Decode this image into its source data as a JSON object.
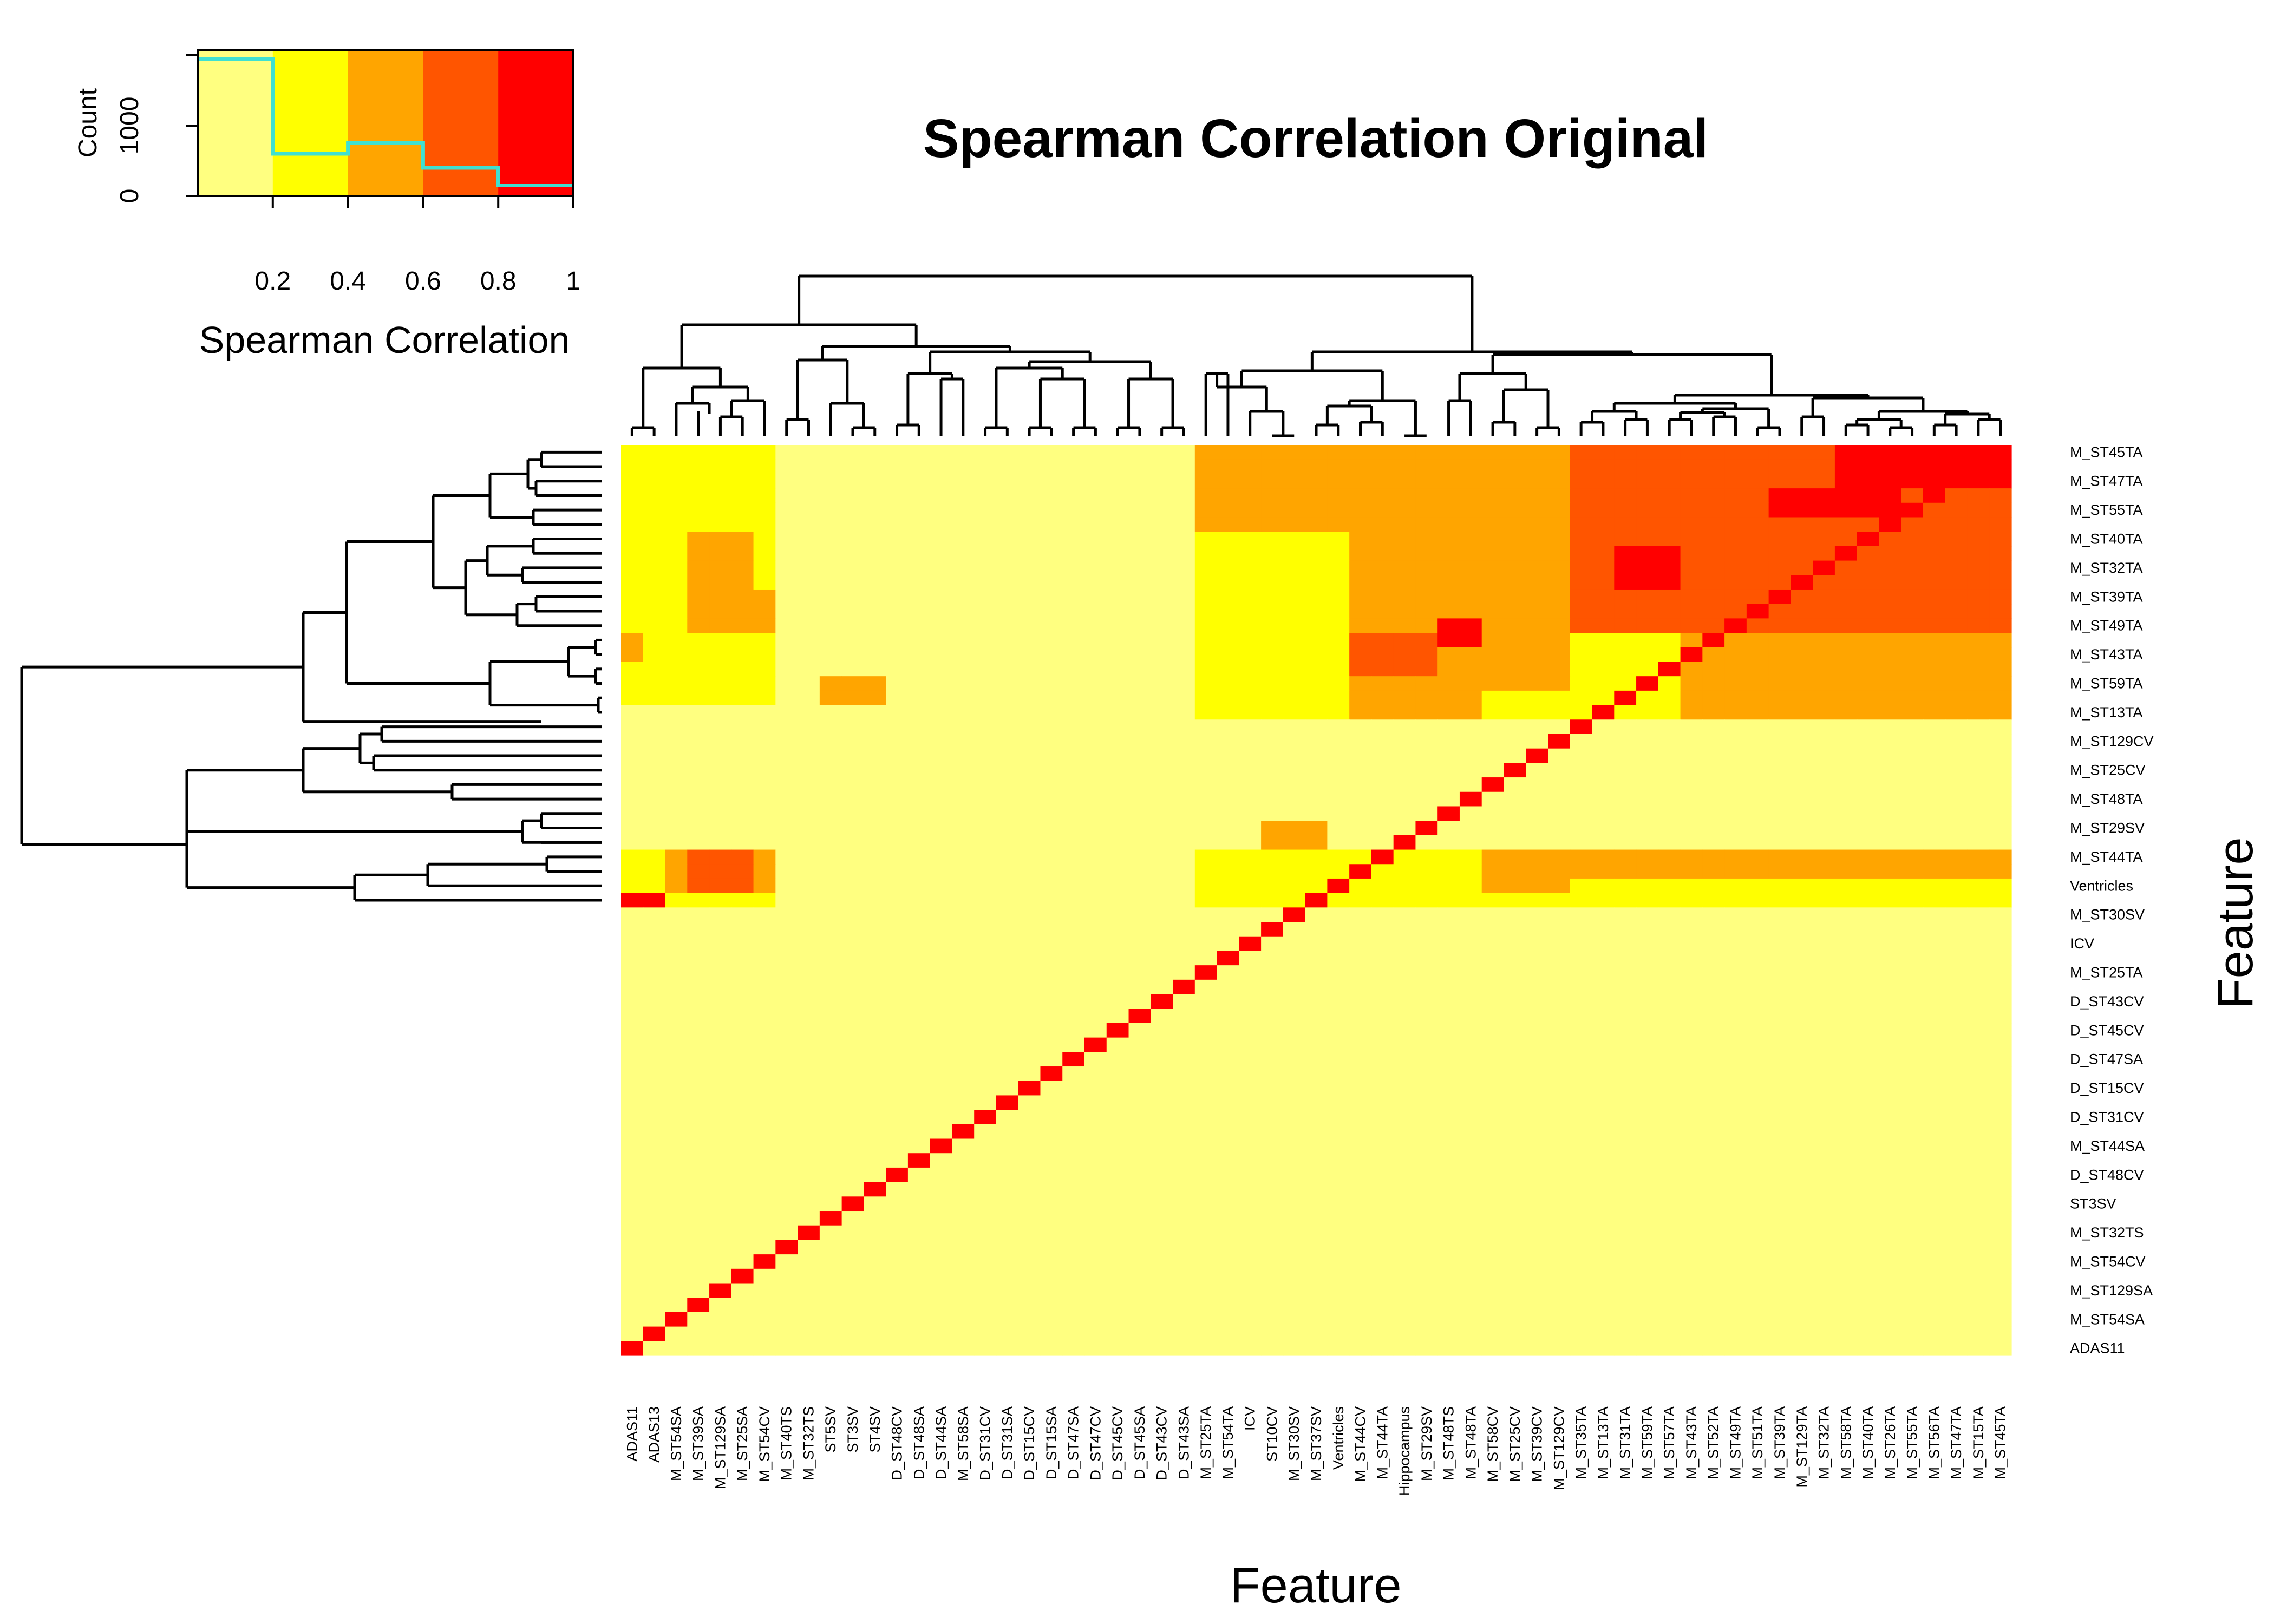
{
  "chart_data": {
    "type": "heatmap",
    "title": "Spearman Correlation Original",
    "xlabel": "Feature",
    "ylabel": "Feature",
    "column_labels": [
      "ADAS11",
      "ADAS13",
      "M_ST54SA",
      "M_ST39SA",
      "M_ST129SA",
      "M_ST25SA",
      "M_ST54CV",
      "M_ST40TS",
      "M_ST32TS",
      "ST5SV",
      "ST3SV",
      "ST4SV",
      "D_ST48CV",
      "D_ST48SA",
      "D_ST44SA",
      "M_ST58SA",
      "D_ST31CV",
      "D_ST31SA",
      "D_ST15CV",
      "D_ST15SA",
      "D_ST47SA",
      "D_ST47CV",
      "D_ST45CV",
      "D_ST45SA",
      "D_ST43CV",
      "D_ST43SA",
      "M_ST25TA",
      "M_ST54TA",
      "ICV",
      "ST10CV",
      "M_ST30SV",
      "M_ST37SV",
      "Ventricles",
      "M_ST44CV",
      "M_ST44TA",
      "Hippocampus",
      "M_ST29SV",
      "M_ST48TS",
      "M_ST48TA",
      "M_ST58CV",
      "M_ST25CV",
      "M_ST39CV",
      "M_ST129CV",
      "M_ST35TA",
      "M_ST13TA",
      "M_ST31TA",
      "M_ST59TA",
      "M_ST57TA",
      "M_ST43TA",
      "M_ST52TA",
      "M_ST49TA",
      "M_ST51TA",
      "M_ST39TA",
      "M_ST129TA",
      "M_ST32TA",
      "M_ST58TA",
      "M_ST40TA",
      "M_ST26TA",
      "M_ST55TA",
      "M_ST56TA",
      "M_ST47TA",
      "M_ST15TA",
      "M_ST45TA"
    ],
    "row_labels": [
      "M_ST45TA",
      "M_ST47TA",
      "M_ST55TA",
      "M_ST40TA",
      "M_ST32TA",
      "M_ST39TA",
      "M_ST49TA",
      "M_ST43TA",
      "M_ST59TA",
      "M_ST13TA",
      "M_ST129CV",
      "M_ST25CV",
      "M_ST48TA",
      "M_ST29SV",
      "M_ST44TA",
      "Ventricles",
      "M_ST30SV",
      "ICV",
      "M_ST25TA",
      "D_ST43CV",
      "D_ST45CV",
      "D_ST47SA",
      "D_ST15CV",
      "D_ST31CV",
      "M_ST44SA",
      "D_ST48CV",
      "ST3SV",
      "M_ST32TS",
      "M_ST54CV",
      "M_ST129SA",
      "M_ST54SA",
      "ADAS11"
    ],
    "row_count": 63,
    "color_bins": [
      {
        "range": [
          0.0,
          0.2
        ],
        "color": "#FFFF80"
      },
      {
        "range": [
          0.2,
          0.4
        ],
        "color": "#FFFF00"
      },
      {
        "range": [
          0.4,
          0.6
        ],
        "color": "#FFA500"
      },
      {
        "range": [
          0.6,
          0.8
        ],
        "color": "#FF5500"
      },
      {
        "range": [
          0.8,
          1.0
        ],
        "color": "#FF0000"
      }
    ],
    "blocks": [
      {
        "rows": [
          0,
          18
        ],
        "cols": [
          26,
          62
        ],
        "value": 0.5
      },
      {
        "rows": [
          0,
          12
        ],
        "cols": [
          43,
          62
        ],
        "value": 0.7
      },
      {
        "rows": [
          0,
          2
        ],
        "cols": [
          55,
          62
        ],
        "value": 0.9
      },
      {
        "rows": [
          3,
          4
        ],
        "cols": [
          52,
          57
        ],
        "value": 0.85
      },
      {
        "rows": [
          6,
          9
        ],
        "cols": [
          43,
          52
        ],
        "value": 0.8
      },
      {
        "rows": [
          7,
          9
        ],
        "cols": [
          45,
          47
        ],
        "value": 0.9
      },
      {
        "rows": [
          0,
          5
        ],
        "cols": [
          43,
          45
        ],
        "value": 0.75
      },
      {
        "rows": [
          13,
          17
        ],
        "cols": [
          29,
          38
        ],
        "value": 0.55
      },
      {
        "rows": [
          15,
          16
        ],
        "cols": [
          30,
          32
        ],
        "value": 0.9
      },
      {
        "rows": [
          13,
          15
        ],
        "cols": [
          33,
          36
        ],
        "value": 0.8
      },
      {
        "rows": [
          12,
          13
        ],
        "cols": [
          37,
          38
        ],
        "value": 0.9
      },
      {
        "rows": [
          17,
          18
        ],
        "cols": [
          26,
          29
        ],
        "value": 0.7
      },
      {
        "rows": [
          6,
          18
        ],
        "cols": [
          26,
          32
        ],
        "value": 0.3
      },
      {
        "rows": [
          13,
          18
        ],
        "cols": [
          43,
          47
        ],
        "value": 0.35
      },
      {
        "rows": [
          17,
          18
        ],
        "cols": [
          39,
          42
        ],
        "value": 0.3
      },
      {
        "rows": [
          0,
          17
        ],
        "cols": [
          0,
          6
        ],
        "value": 0.3
      },
      {
        "rows": [
          6,
          12
        ],
        "cols": [
          3,
          5
        ],
        "value": 0.45
      },
      {
        "rows": [
          10,
          12
        ],
        "cols": [
          3,
          6
        ],
        "value": 0.5
      },
      {
        "rows": [
          13,
          14
        ],
        "cols": [
          0,
          0
        ],
        "value": 0.45
      },
      {
        "rows": [
          16,
          17
        ],
        "cols": [
          9,
          11
        ],
        "value": 0.45
      },
      {
        "rows": [
          28,
          31
        ],
        "cols": [
          0,
          6
        ],
        "value": 0.3
      },
      {
        "rows": [
          28,
          31
        ],
        "cols": [
          26,
          62
        ],
        "value": 0.3
      },
      {
        "rows": [
          28,
          30
        ],
        "cols": [
          39,
          42
        ],
        "value": 0.45
      },
      {
        "rows": [
          28,
          29
        ],
        "cols": [
          43,
          62
        ],
        "value": 0.5
      },
      {
        "rows": [
          26,
          27
        ],
        "cols": [
          29,
          31
        ],
        "value": 0.45
      },
      {
        "rows": [
          28,
          30
        ],
        "cols": [
          2,
          6
        ],
        "value": 0.5
      },
      {
        "rows": [
          31,
          31
        ],
        "cols": [
          0,
          1
        ],
        "value": 0.9
      },
      {
        "rows": [
          28,
          30
        ],
        "cols": [
          3,
          5
        ],
        "value": 0.8
      }
    ],
    "diagonal_value": 1.0,
    "count_histogram": {
      "bins": [
        0.0,
        0.2,
        0.4,
        0.6,
        0.8,
        1.0
      ],
      "counts": [
        1950,
        600,
        750,
        400,
        150
      ]
    },
    "key": {
      "title": "Spearman Correlation",
      "x_ticks": [
        "0.2",
        "0.4",
        "0.6",
        "0.8",
        "1"
      ],
      "y_label": "Count",
      "y_ticks": [
        "0",
        "1000"
      ],
      "trace_color": "#40E0D0"
    }
  }
}
